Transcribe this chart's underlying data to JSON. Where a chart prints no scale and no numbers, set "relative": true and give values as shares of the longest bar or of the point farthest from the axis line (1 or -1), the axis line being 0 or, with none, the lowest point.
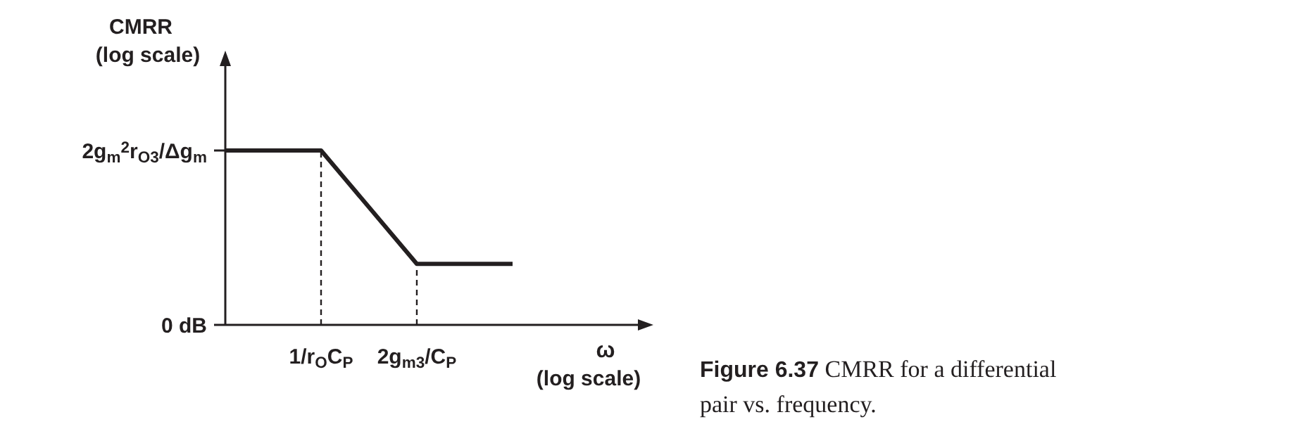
{
  "chart_data": {
    "type": "line",
    "relative": true,
    "ylabel": "CMRR\n(log scale)",
    "xlabel": "ω\n(log scale)",
    "categories": [
      null,
      "1/r$_{O}$C$_{P}$",
      "2g$_{m3}$/C$_{P}$",
      null
    ],
    "series": [
      {
        "color": "#231f20",
        "values": [
          1,
          1,
          0.35,
          0.35
        ]
      }
    ],
    "ref_lines": [
      {
        "axis": "x",
        "value": "1/r$_{O}$C$_{P}$",
        "line_style": "dashed"
      },
      {
        "axis": "x",
        "value": "2g$_{m3}$/C$_{P}$",
        "line_style": "dashed"
      }
    ],
    "marker": "none",
    "line_style": "solid",
    "annotations": [
      "Figure 6.37  CMRR for a differential\npair vs. frequency.",
      "0 dB",
      "2g$_{m}$$^{2}$r$_{O3}$/Δg$_{m}$"
    ]
  }
}
